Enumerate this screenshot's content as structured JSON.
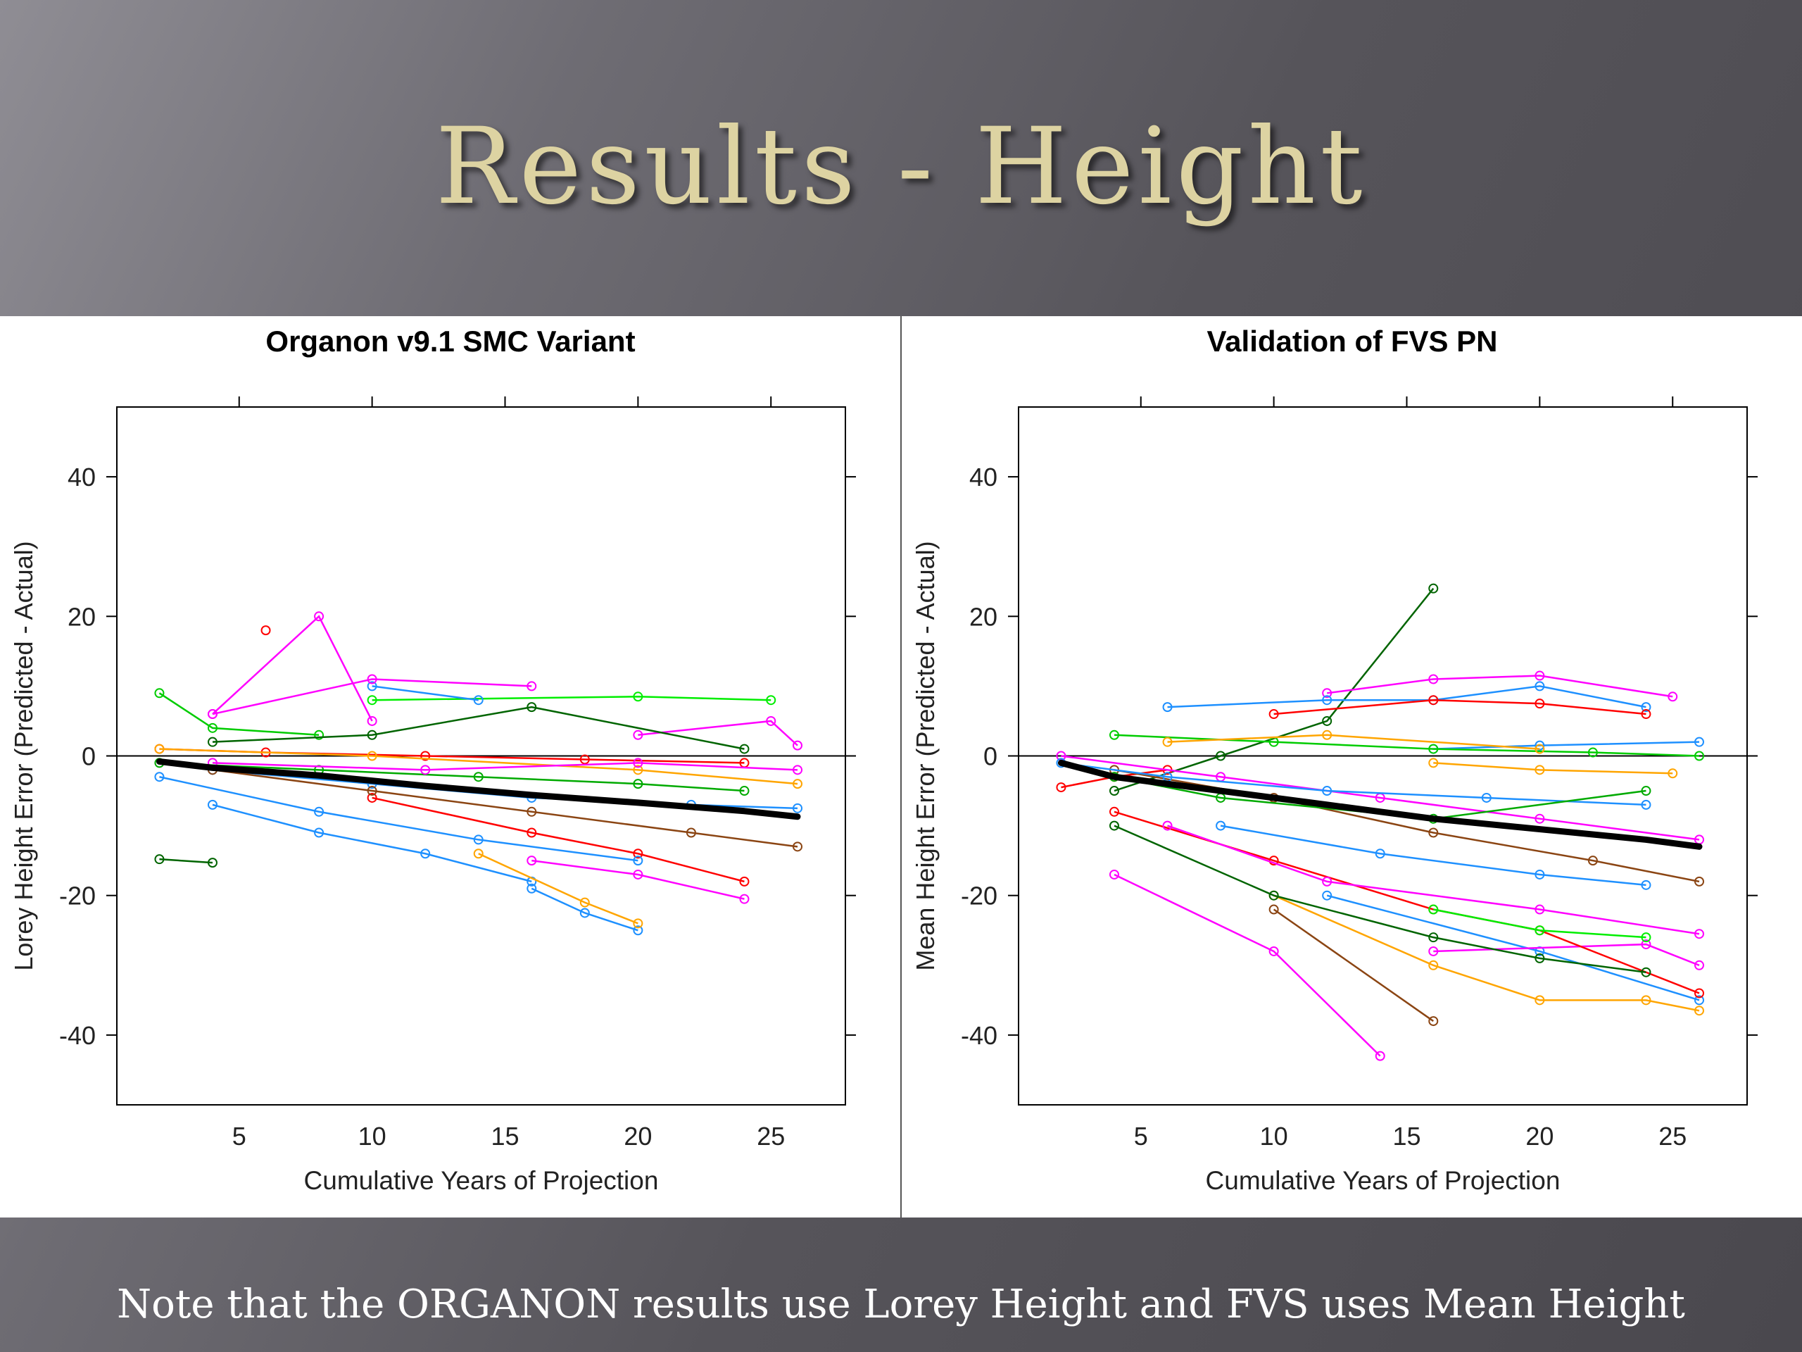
{
  "slide": {
    "title": "Results - Height",
    "footnote": "Note that the ORGANON results use Lorey Height and FVS uses Mean Height"
  },
  "chart_data": [
    {
      "type": "line",
      "title": "Organon v9.1 SMC Variant",
      "xlabel": "Cumulative Years of Projection",
      "ylabel": "Lorey Height Error (Predicted - Actual)",
      "xlim": [
        0.4,
        27.8
      ],
      "ylim": [
        -50,
        50
      ],
      "xticks": [
        5,
        10,
        15,
        20,
        25
      ],
      "yticks": [
        -40,
        -20,
        0,
        20,
        40
      ],
      "hline": 0,
      "mean_trend": {
        "x": [
          2,
          4,
          8,
          12,
          16,
          20,
          24,
          26
        ],
        "y": [
          -0.8,
          -1.7,
          -2.8,
          -4.3,
          -5.6,
          -6.7,
          -7.9,
          -8.7
        ]
      },
      "series": [
        {
          "color": "#ff00ff",
          "x": [
            4,
            8,
            10
          ],
          "y": [
            6,
            20,
            5
          ]
        },
        {
          "color": "#ff0000",
          "x": [
            6
          ],
          "y": [
            18
          ]
        },
        {
          "color": "#00cc00",
          "x": [
            2,
            4,
            8
          ],
          "y": [
            9,
            4,
            3
          ]
        },
        {
          "color": "#00ee00",
          "x": [
            10,
            20,
            25
          ],
          "y": [
            8,
            8.5,
            8
          ]
        },
        {
          "color": "#1e90ff",
          "x": [
            10,
            14
          ],
          "y": [
            10,
            8
          ]
        },
        {
          "color": "#ff00ff",
          "x": [
            4,
            10,
            16
          ],
          "y": [
            6,
            11,
            10
          ]
        },
        {
          "color": "#ff00ff",
          "x": [
            20,
            25,
            26
          ],
          "y": [
            3,
            5,
            1.5
          ]
        },
        {
          "color": "#006400",
          "x": [
            2,
            4
          ],
          "y": [
            -14.8,
            -15.3
          ]
        },
        {
          "color": "#1e90ff",
          "x": [
            4,
            8,
            12,
            16
          ],
          "y": [
            -7,
            -11,
            -14,
            -18
          ]
        },
        {
          "color": "#1e90ff",
          "x": [
            16,
            18,
            20
          ],
          "y": [
            -19,
            -22.5,
            -25
          ]
        },
        {
          "color": "#ffa500",
          "x": [
            14,
            18,
            20
          ],
          "y": [
            -14,
            -21,
            -24
          ]
        },
        {
          "color": "#ff00ff",
          "x": [
            16,
            20,
            24
          ],
          "y": [
            -15,
            -17,
            -20.5
          ]
        },
        {
          "color": "#ff0000",
          "x": [
            10,
            16,
            20,
            24
          ],
          "y": [
            -6,
            -11,
            -14,
            -18
          ]
        },
        {
          "color": "#1e90ff",
          "x": [
            4,
            10,
            16,
            22,
            26
          ],
          "y": [
            -2,
            -4,
            -6,
            -7,
            -7.5
          ]
        },
        {
          "color": "#ff0000",
          "x": [
            2,
            6,
            12,
            18,
            24
          ],
          "y": [
            1,
            0.5,
            0,
            -0.5,
            -1
          ]
        },
        {
          "color": "#00aa00",
          "x": [
            2,
            8,
            14,
            20,
            24
          ],
          "y": [
            -1,
            -2,
            -3,
            -4,
            -5
          ]
        },
        {
          "color": "#8b4513",
          "x": [
            4,
            10,
            16,
            22,
            26
          ],
          "y": [
            -2,
            -5,
            -8,
            -11,
            -13
          ]
        },
        {
          "color": "#ffa500",
          "x": [
            2,
            10,
            20,
            26
          ],
          "y": [
            1,
            0,
            -2,
            -4
          ]
        },
        {
          "color": "#006400",
          "x": [
            4,
            10,
            16,
            24
          ],
          "y": [
            2,
            3,
            7,
            1
          ]
        },
        {
          "color": "#ff00ff",
          "x": [
            4,
            12,
            20,
            26
          ],
          "y": [
            -1,
            -2,
            -1,
            -2
          ]
        },
        {
          "color": "#1e90ff",
          "x": [
            2,
            8,
            14,
            20
          ],
          "y": [
            -3,
            -8,
            -12,
            -15
          ]
        }
      ]
    },
    {
      "type": "line",
      "title": "Validation of FVS PN",
      "xlabel": "Cumulative Years of Projection",
      "ylabel": "Mean Height Error (Predicted - Actual)",
      "xlim": [
        0.4,
        27.8
      ],
      "ylim": [
        -50,
        50
      ],
      "xticks": [
        5,
        10,
        15,
        20,
        25
      ],
      "yticks": [
        -40,
        -20,
        0,
        20,
        40
      ],
      "hline": 0,
      "mean_trend": {
        "x": [
          2,
          4,
          8,
          12,
          16,
          20,
          24,
          26
        ],
        "y": [
          -1,
          -3,
          -5,
          -7,
          -9,
          -10.5,
          -12,
          -13
        ]
      },
      "series": [
        {
          "color": "#006400",
          "x": [
            4,
            8,
            12,
            16
          ],
          "y": [
            -5,
            0,
            5,
            24
          ]
        },
        {
          "color": "#ff00ff",
          "x": [
            12,
            16,
            20,
            25
          ],
          "y": [
            9,
            11,
            11.5,
            8.5
          ]
        },
        {
          "color": "#1e90ff",
          "x": [
            6,
            12,
            16,
            20,
            24
          ],
          "y": [
            7,
            8,
            8,
            10,
            7
          ]
        },
        {
          "color": "#ff0000",
          "x": [
            10,
            16,
            20,
            24
          ],
          "y": [
            6,
            8,
            7.5,
            6
          ]
        },
        {
          "color": "#1e90ff",
          "x": [
            16,
            20,
            26
          ],
          "y": [
            1,
            1.5,
            2
          ]
        },
        {
          "color": "#ff00ff",
          "x": [
            4,
            10,
            14
          ],
          "y": [
            -17,
            -28,
            -43
          ]
        },
        {
          "color": "#ffa500",
          "x": [
            10,
            16,
            20,
            24,
            26
          ],
          "y": [
            -20,
            -30,
            -35,
            -35,
            -36.5
          ]
        },
        {
          "color": "#1e90ff",
          "x": [
            12,
            20,
            26
          ],
          "y": [
            -20,
            -28,
            -35
          ]
        },
        {
          "color": "#8b4513",
          "x": [
            10,
            16
          ],
          "y": [
            -22,
            -38
          ]
        },
        {
          "color": "#ff00ff",
          "x": [
            16,
            24,
            26
          ],
          "y": [
            -28,
            -27,
            -30
          ]
        },
        {
          "color": "#ff0000",
          "x": [
            4,
            10,
            16,
            20,
            26
          ],
          "y": [
            -8,
            -15,
            -22,
            -25,
            -34
          ]
        },
        {
          "color": "#006400",
          "x": [
            4,
            10,
            16,
            20,
            24
          ],
          "y": [
            -10,
            -20,
            -26,
            -29,
            -31
          ]
        },
        {
          "color": "#00ee00",
          "x": [
            16,
            20,
            24
          ],
          "y": [
            -22,
            -25,
            -26
          ]
        },
        {
          "color": "#ff00ff",
          "x": [
            6,
            12,
            20,
            26
          ],
          "y": [
            -10,
            -18,
            -22,
            -25.5
          ]
        },
        {
          "color": "#1e90ff",
          "x": [
            8,
            14,
            20,
            24
          ],
          "y": [
            -10,
            -14,
            -17,
            -18.5
          ]
        },
        {
          "color": "#ffa500",
          "x": [
            16,
            20,
            25
          ],
          "y": [
            -1,
            -2,
            -2.5
          ]
        },
        {
          "color": "#00cc00",
          "x": [
            4,
            10,
            16,
            22,
            26
          ],
          "y": [
            3,
            2,
            1,
            0.5,
            0
          ]
        },
        {
          "color": "#ff0000",
          "x": [
            2,
            4,
            6
          ],
          "y": [
            -4.5,
            -3,
            -2
          ]
        },
        {
          "color": "#ff00ff",
          "x": [
            2,
            8,
            14,
            20,
            26
          ],
          "y": [
            0,
            -3,
            -6,
            -9,
            -12
          ]
        },
        {
          "color": "#8b4513",
          "x": [
            4,
            10,
            16,
            22,
            26
          ],
          "y": [
            -2,
            -6,
            -11,
            -15,
            -18
          ]
        },
        {
          "color": "#1e90ff",
          "x": [
            2,
            6,
            12,
            18,
            24
          ],
          "y": [
            -1,
            -3,
            -5,
            -6,
            -7
          ]
        },
        {
          "color": "#00aa00",
          "x": [
            4,
            8,
            16,
            24
          ],
          "y": [
            -3,
            -6,
            -9,
            -5
          ]
        },
        {
          "color": "#ffa500",
          "x": [
            6,
            12,
            20
          ],
          "y": [
            2,
            3,
            1
          ]
        }
      ]
    }
  ]
}
